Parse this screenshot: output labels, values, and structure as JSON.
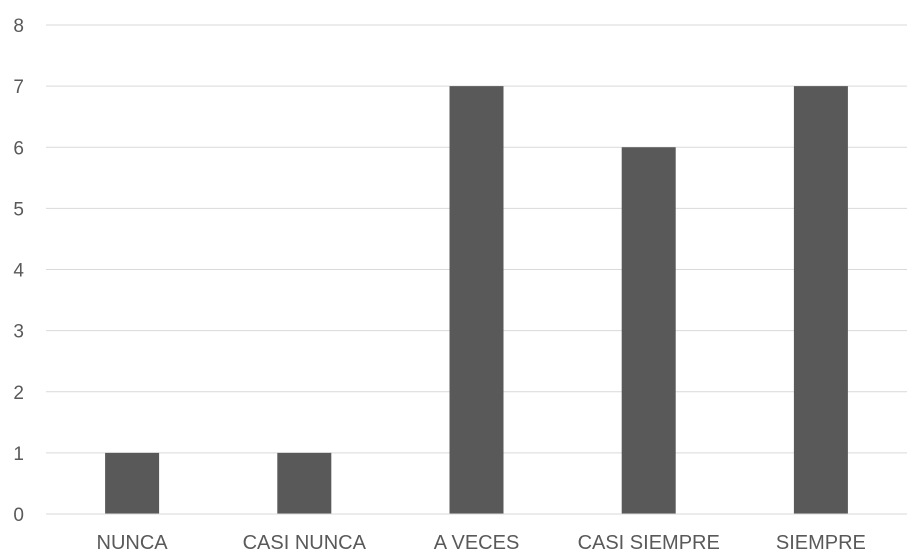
{
  "chart_data": {
    "type": "bar",
    "title": "",
    "xlabel": "",
    "ylabel": "",
    "categories": [
      "NUNCA",
      "CASI NUNCA",
      "A VECES",
      "CASI SIEMPRE",
      "SIEMPRE"
    ],
    "values": [
      1,
      1,
      7,
      6,
      7
    ],
    "ylim": [
      0,
      8
    ],
    "yticks": [
      0,
      1,
      2,
      3,
      4,
      5,
      6,
      7,
      8
    ],
    "grid": true,
    "legend": "none",
    "bar_color": "#595959",
    "grid_color": "#d9d9d9",
    "label_color": "#595959"
  }
}
